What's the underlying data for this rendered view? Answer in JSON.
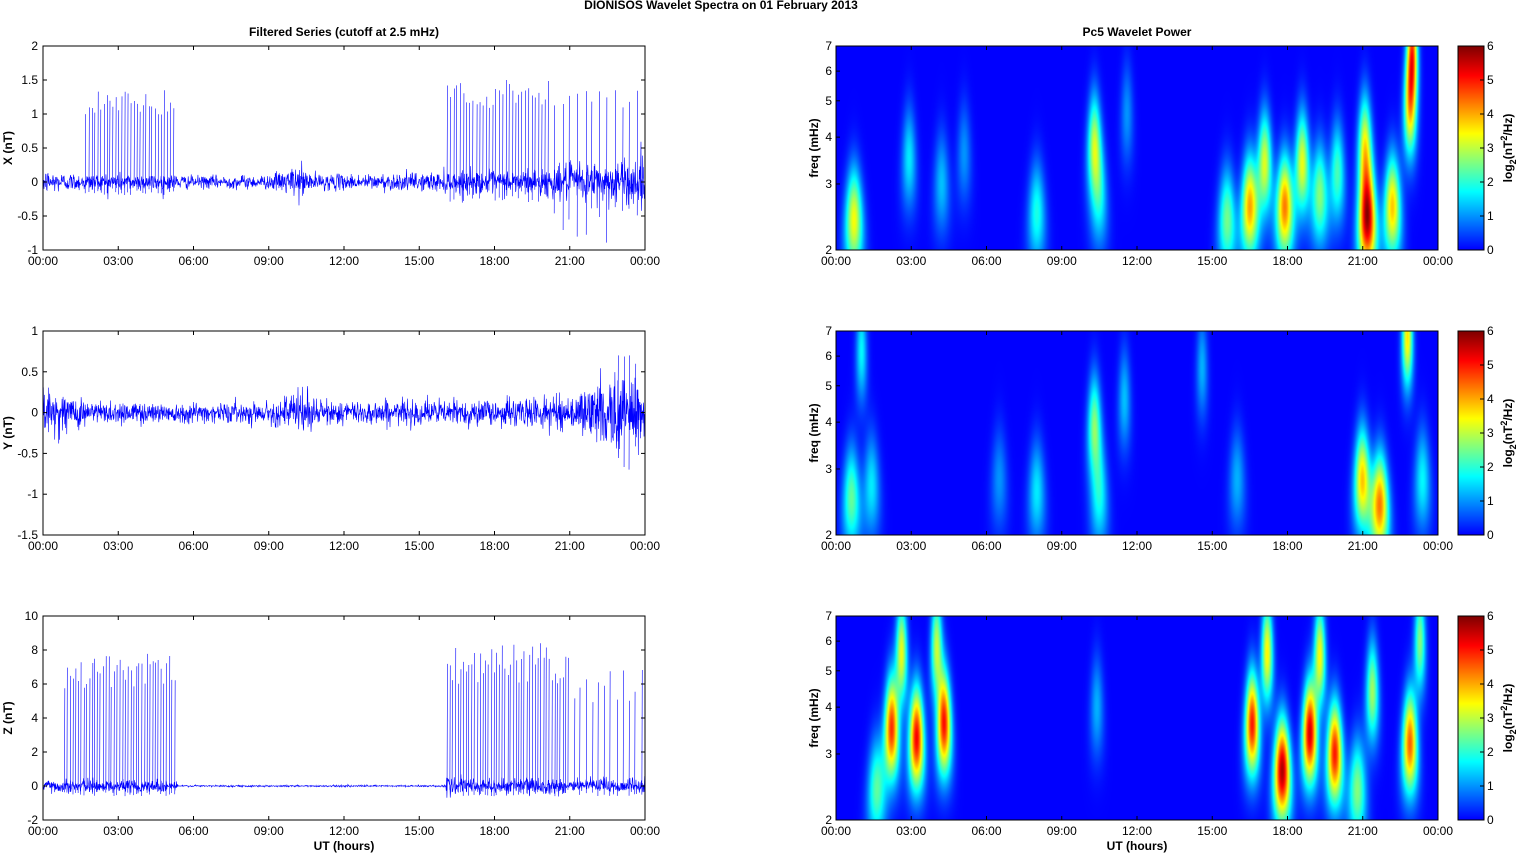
{
  "figure": {
    "suptitle": "DIONISOS Wavelet Spectra on 01 February  2013",
    "left_title": "Filtered Series (cutoff at 2.5 mHz)",
    "right_title": "Pc5 Wavelet Power",
    "xlabel": "UT (hours)"
  },
  "colors": {
    "series_line": "#0000ff",
    "spectrogram_background": "#00008f",
    "axes": "#000000",
    "colormap": "jet"
  },
  "chart_data": [
    {
      "type": "line",
      "name": "time-series-x",
      "title": "Filtered Series (cutoff at 2.5 mHz)",
      "ylabel": "X (nT)",
      "xlabel": "",
      "xlim": [
        0,
        24
      ],
      "ylim": [
        -1,
        2
      ],
      "xticks": [
        "00:00",
        "03:00",
        "06:00",
        "09:00",
        "12:00",
        "15:00",
        "18:00",
        "21:00",
        "00:00"
      ],
      "yticks": [
        "-1",
        "-0.5",
        "0",
        "0.5",
        "1",
        "1.5",
        "2"
      ],
      "ytick_values": [
        -1,
        -0.5,
        0,
        0.5,
        1,
        1.5,
        2
      ],
      "noise_envelope": {
        "x": [
          0,
          1,
          2,
          3,
          4,
          5,
          6,
          9,
          10.3,
          10.8,
          12,
          15,
          16,
          17,
          18,
          19,
          20,
          21,
          22,
          23,
          24
        ],
        "y": [
          0.18,
          0.13,
          0.12,
          0.13,
          0.12,
          0.12,
          0.09,
          0.1,
          0.25,
          0.12,
          0.11,
          0.13,
          0.15,
          0.16,
          0.16,
          0.18,
          0.2,
          0.26,
          0.3,
          0.32,
          0.35
        ]
      },
      "spike_bursts": [
        {
          "start": 1.7,
          "end": 5.3,
          "step": 0.12,
          "peak": 1.3,
          "dip": -0.2
        },
        {
          "start": 16.1,
          "end": 20.2,
          "step": 0.13,
          "peak": 1.45,
          "dip": -0.3
        },
        {
          "start": 20.4,
          "end": 23.8,
          "step": 0.3,
          "peak": 1.3,
          "dip": -0.9
        }
      ]
    },
    {
      "type": "line",
      "name": "time-series-y",
      "ylabel": "Y (nT)",
      "xlabel": "",
      "xlim": [
        0,
        24
      ],
      "ylim": [
        -1.5,
        1
      ],
      "xticks": [
        "00:00",
        "03:00",
        "06:00",
        "09:00",
        "12:00",
        "15:00",
        "18:00",
        "21:00",
        "00:00"
      ],
      "yticks": [
        "-1.5",
        "-1",
        "-0.5",
        "0",
        "0.5",
        "1"
      ],
      "ytick_values": [
        -1.5,
        -1,
        -0.5,
        0,
        0.5,
        1
      ],
      "noise_envelope": {
        "x": [
          0,
          1,
          2,
          5,
          9,
          10.5,
          11,
          15,
          18,
          21,
          22,
          22.8,
          23.4,
          24
        ],
        "y": [
          0.28,
          0.22,
          0.15,
          0.12,
          0.12,
          0.3,
          0.14,
          0.15,
          0.16,
          0.2,
          0.35,
          0.45,
          0.55,
          0.5
        ]
      },
      "spike_bursts": [
        {
          "start": 22.9,
          "end": 23.8,
          "step": 0.25,
          "peak": 0.7,
          "dip": -0.95
        }
      ]
    },
    {
      "type": "line",
      "name": "time-series-z",
      "ylabel": "Z (nT)",
      "xlabel": "UT (hours)",
      "xlim": [
        0,
        24
      ],
      "ylim": [
        -2,
        10
      ],
      "xticks": [
        "00:00",
        "03:00",
        "06:00",
        "09:00",
        "12:00",
        "15:00",
        "18:00",
        "21:00",
        "00:00"
      ],
      "yticks": [
        "-2",
        "0",
        "2",
        "4",
        "6",
        "8",
        "10"
      ],
      "ytick_values": [
        -2,
        0,
        2,
        4,
        6,
        8,
        10
      ],
      "noise_envelope": {
        "x": [
          0,
          5.3,
          5.4,
          16.0,
          16.1,
          24
        ],
        "y": [
          0.35,
          0.35,
          0.05,
          0.05,
          0.45,
          0.45
        ]
      },
      "spike_bursts": [
        {
          "start": 0.85,
          "end": 5.3,
          "step": 0.11,
          "peak": 7.5,
          "dip": -0.6
        },
        {
          "start": 16.1,
          "end": 21.0,
          "step": 0.11,
          "peak": 8.0,
          "dip": -0.6
        },
        {
          "start": 21.2,
          "end": 23.9,
          "step": 0.24,
          "peak": 6.5,
          "dip": -0.6
        }
      ]
    },
    {
      "type": "heatmap",
      "name": "wavelet-power-x",
      "title": "Pc5 Wavelet Power",
      "ylabel": "freq (mHz)",
      "xlabel": "",
      "xlim": [
        0,
        24
      ],
      "ylim": [
        2,
        7
      ],
      "yscale": "log",
      "xticks": [
        "00:00",
        "03:00",
        "06:00",
        "09:00",
        "12:00",
        "15:00",
        "18:00",
        "21:00",
        "00:00"
      ],
      "yticks": [
        "2",
        "3",
        "4",
        "5",
        "6",
        "7"
      ],
      "ytick_values": [
        2,
        3,
        4,
        5,
        6,
        7
      ],
      "colorbar_ticks": [
        "0",
        "1",
        "2",
        "3",
        "4",
        "5",
        "6"
      ],
      "colorbar_label": "log2(nT2/Hz)",
      "clim": [
        0,
        6
      ],
      "blobs": [
        {
          "t": 0.7,
          "f": 2.4,
          "p": 3.4
        },
        {
          "t": 2.9,
          "f": 3.5,
          "p": 1.6
        },
        {
          "t": 4.2,
          "f": 3.0,
          "p": 1.3
        },
        {
          "t": 5.1,
          "f": 3.6,
          "p": 1.0
        },
        {
          "t": 8.0,
          "f": 2.5,
          "p": 1.9
        },
        {
          "t": 10.3,
          "f": 3.8,
          "p": 3.0
        },
        {
          "t": 10.5,
          "f": 2.7,
          "p": 1.5
        },
        {
          "t": 11.6,
          "f": 4.6,
          "p": 1.0
        },
        {
          "t": 15.6,
          "f": 2.4,
          "p": 2.5
        },
        {
          "t": 16.5,
          "f": 2.6,
          "p": 4.0
        },
        {
          "t": 17.1,
          "f": 3.4,
          "p": 3.2
        },
        {
          "t": 17.9,
          "f": 2.6,
          "p": 4.3
        },
        {
          "t": 18.6,
          "f": 3.4,
          "p": 3.3
        },
        {
          "t": 19.3,
          "f": 2.8,
          "p": 2.6
        },
        {
          "t": 20.0,
          "f": 3.2,
          "p": 2.2
        },
        {
          "t": 21.2,
          "f": 2.4,
          "p": 5.6
        },
        {
          "t": 21.1,
          "f": 3.8,
          "p": 3.2
        },
        {
          "t": 22.2,
          "f": 2.6,
          "p": 3.8
        },
        {
          "t": 22.9,
          "f": 4.8,
          "p": 3.4
        },
        {
          "t": 23.0,
          "f": 6.8,
          "p": 4.2
        }
      ]
    },
    {
      "type": "heatmap",
      "name": "wavelet-power-y",
      "ylabel": "freq (mHz)",
      "xlabel": "",
      "xlim": [
        0,
        24
      ],
      "ylim": [
        2,
        7
      ],
      "yscale": "log",
      "xticks": [
        "00:00",
        "03:00",
        "06:00",
        "09:00",
        "12:00",
        "15:00",
        "18:00",
        "21:00",
        "00:00"
      ],
      "yticks": [
        "2",
        "3",
        "4",
        "5",
        "6",
        "7"
      ],
      "ytick_values": [
        2,
        3,
        4,
        5,
        6,
        7
      ],
      "colorbar_ticks": [
        "0",
        "1",
        "2",
        "3",
        "4",
        "5",
        "6"
      ],
      "colorbar_label": "log2(nT2/Hz)",
      "clim": [
        0,
        6
      ],
      "blobs": [
        {
          "t": 0.6,
          "f": 2.5,
          "p": 2.4
        },
        {
          "t": 1.0,
          "f": 6.2,
          "p": 1.7
        },
        {
          "t": 1.4,
          "f": 2.7,
          "p": 1.6
        },
        {
          "t": 6.5,
          "f": 2.8,
          "p": 1.0
        },
        {
          "t": 8.0,
          "f": 2.6,
          "p": 1.6
        },
        {
          "t": 10.3,
          "f": 3.9,
          "p": 2.6
        },
        {
          "t": 10.5,
          "f": 2.5,
          "p": 1.7
        },
        {
          "t": 11.5,
          "f": 4.6,
          "p": 1.3
        },
        {
          "t": 14.6,
          "f": 5.6,
          "p": 1.2
        },
        {
          "t": 16.0,
          "f": 2.8,
          "p": 1.2
        },
        {
          "t": 21.0,
          "f": 2.8,
          "p": 3.8
        },
        {
          "t": 21.7,
          "f": 2.4,
          "p": 4.3
        },
        {
          "t": 22.8,
          "f": 6.8,
          "p": 3.6
        },
        {
          "t": 23.4,
          "f": 2.8,
          "p": 1.7
        }
      ]
    },
    {
      "type": "heatmap",
      "name": "wavelet-power-z",
      "ylabel": "freq (mHz)",
      "xlabel": "UT (hours)",
      "xlim": [
        0,
        24
      ],
      "ylim": [
        2,
        7
      ],
      "yscale": "log",
      "xticks": [
        "00:00",
        "03:00",
        "06:00",
        "09:00",
        "12:00",
        "15:00",
        "18:00",
        "21:00",
        "00:00"
      ],
      "yticks": [
        "2",
        "3",
        "4",
        "5",
        "6",
        "7"
      ],
      "ytick_values": [
        2,
        3,
        4,
        5,
        6,
        7
      ],
      "colorbar_ticks": [
        "0",
        "1",
        "2",
        "3",
        "4",
        "5",
        "6"
      ],
      "colorbar_label": "log2(nT2/Hz)",
      "clim": [
        0,
        6
      ],
      "blobs": [
        {
          "t": 2.2,
          "f": 3.5,
          "p": 4.8
        },
        {
          "t": 3.2,
          "f": 3.3,
          "p": 5.2
        },
        {
          "t": 4.3,
          "f": 3.6,
          "p": 5.0
        },
        {
          "t": 1.6,
          "f": 2.4,
          "p": 2.3
        },
        {
          "t": 2.6,
          "f": 5.6,
          "p": 3.3
        },
        {
          "t": 4.0,
          "f": 5.8,
          "p": 3.0
        },
        {
          "t": 10.4,
          "f": 4.0,
          "p": 1.2
        },
        {
          "t": 16.6,
          "f": 3.6,
          "p": 5.0
        },
        {
          "t": 17.8,
          "f": 2.7,
          "p": 5.7
        },
        {
          "t": 18.9,
          "f": 3.4,
          "p": 5.4
        },
        {
          "t": 19.9,
          "f": 3.0,
          "p": 5.0
        },
        {
          "t": 17.2,
          "f": 5.6,
          "p": 3.5
        },
        {
          "t": 19.3,
          "f": 5.5,
          "p": 3.4
        },
        {
          "t": 20.8,
          "f": 2.4,
          "p": 2.6
        },
        {
          "t": 21.4,
          "f": 4.4,
          "p": 2.8
        },
        {
          "t": 22.9,
          "f": 3.2,
          "p": 4.5
        },
        {
          "t": 23.3,
          "f": 6.0,
          "p": 2.6
        }
      ]
    }
  ]
}
